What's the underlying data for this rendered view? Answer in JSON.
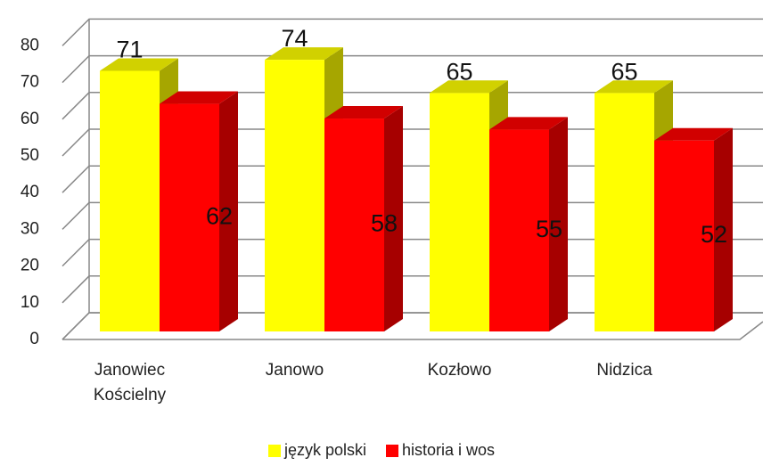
{
  "chart_data": {
    "type": "bar3d",
    "categories": [
      "Janowiec Kościelny",
      "Janowo",
      "Kozłowo",
      "Nidzica"
    ],
    "series": [
      {
        "name": "język polski",
        "color": "#ffff00",
        "values": [
          71,
          74,
          65,
          65
        ]
      },
      {
        "name": "historia i wos",
        "color": "#ff0000",
        "values": [
          62,
          58,
          55,
          52
        ]
      }
    ],
    "ylim": [
      0,
      80
    ],
    "yticks": [
      0,
      10,
      20,
      30,
      40,
      50,
      60,
      70,
      80
    ],
    "grid": true,
    "legend": "bottom"
  }
}
